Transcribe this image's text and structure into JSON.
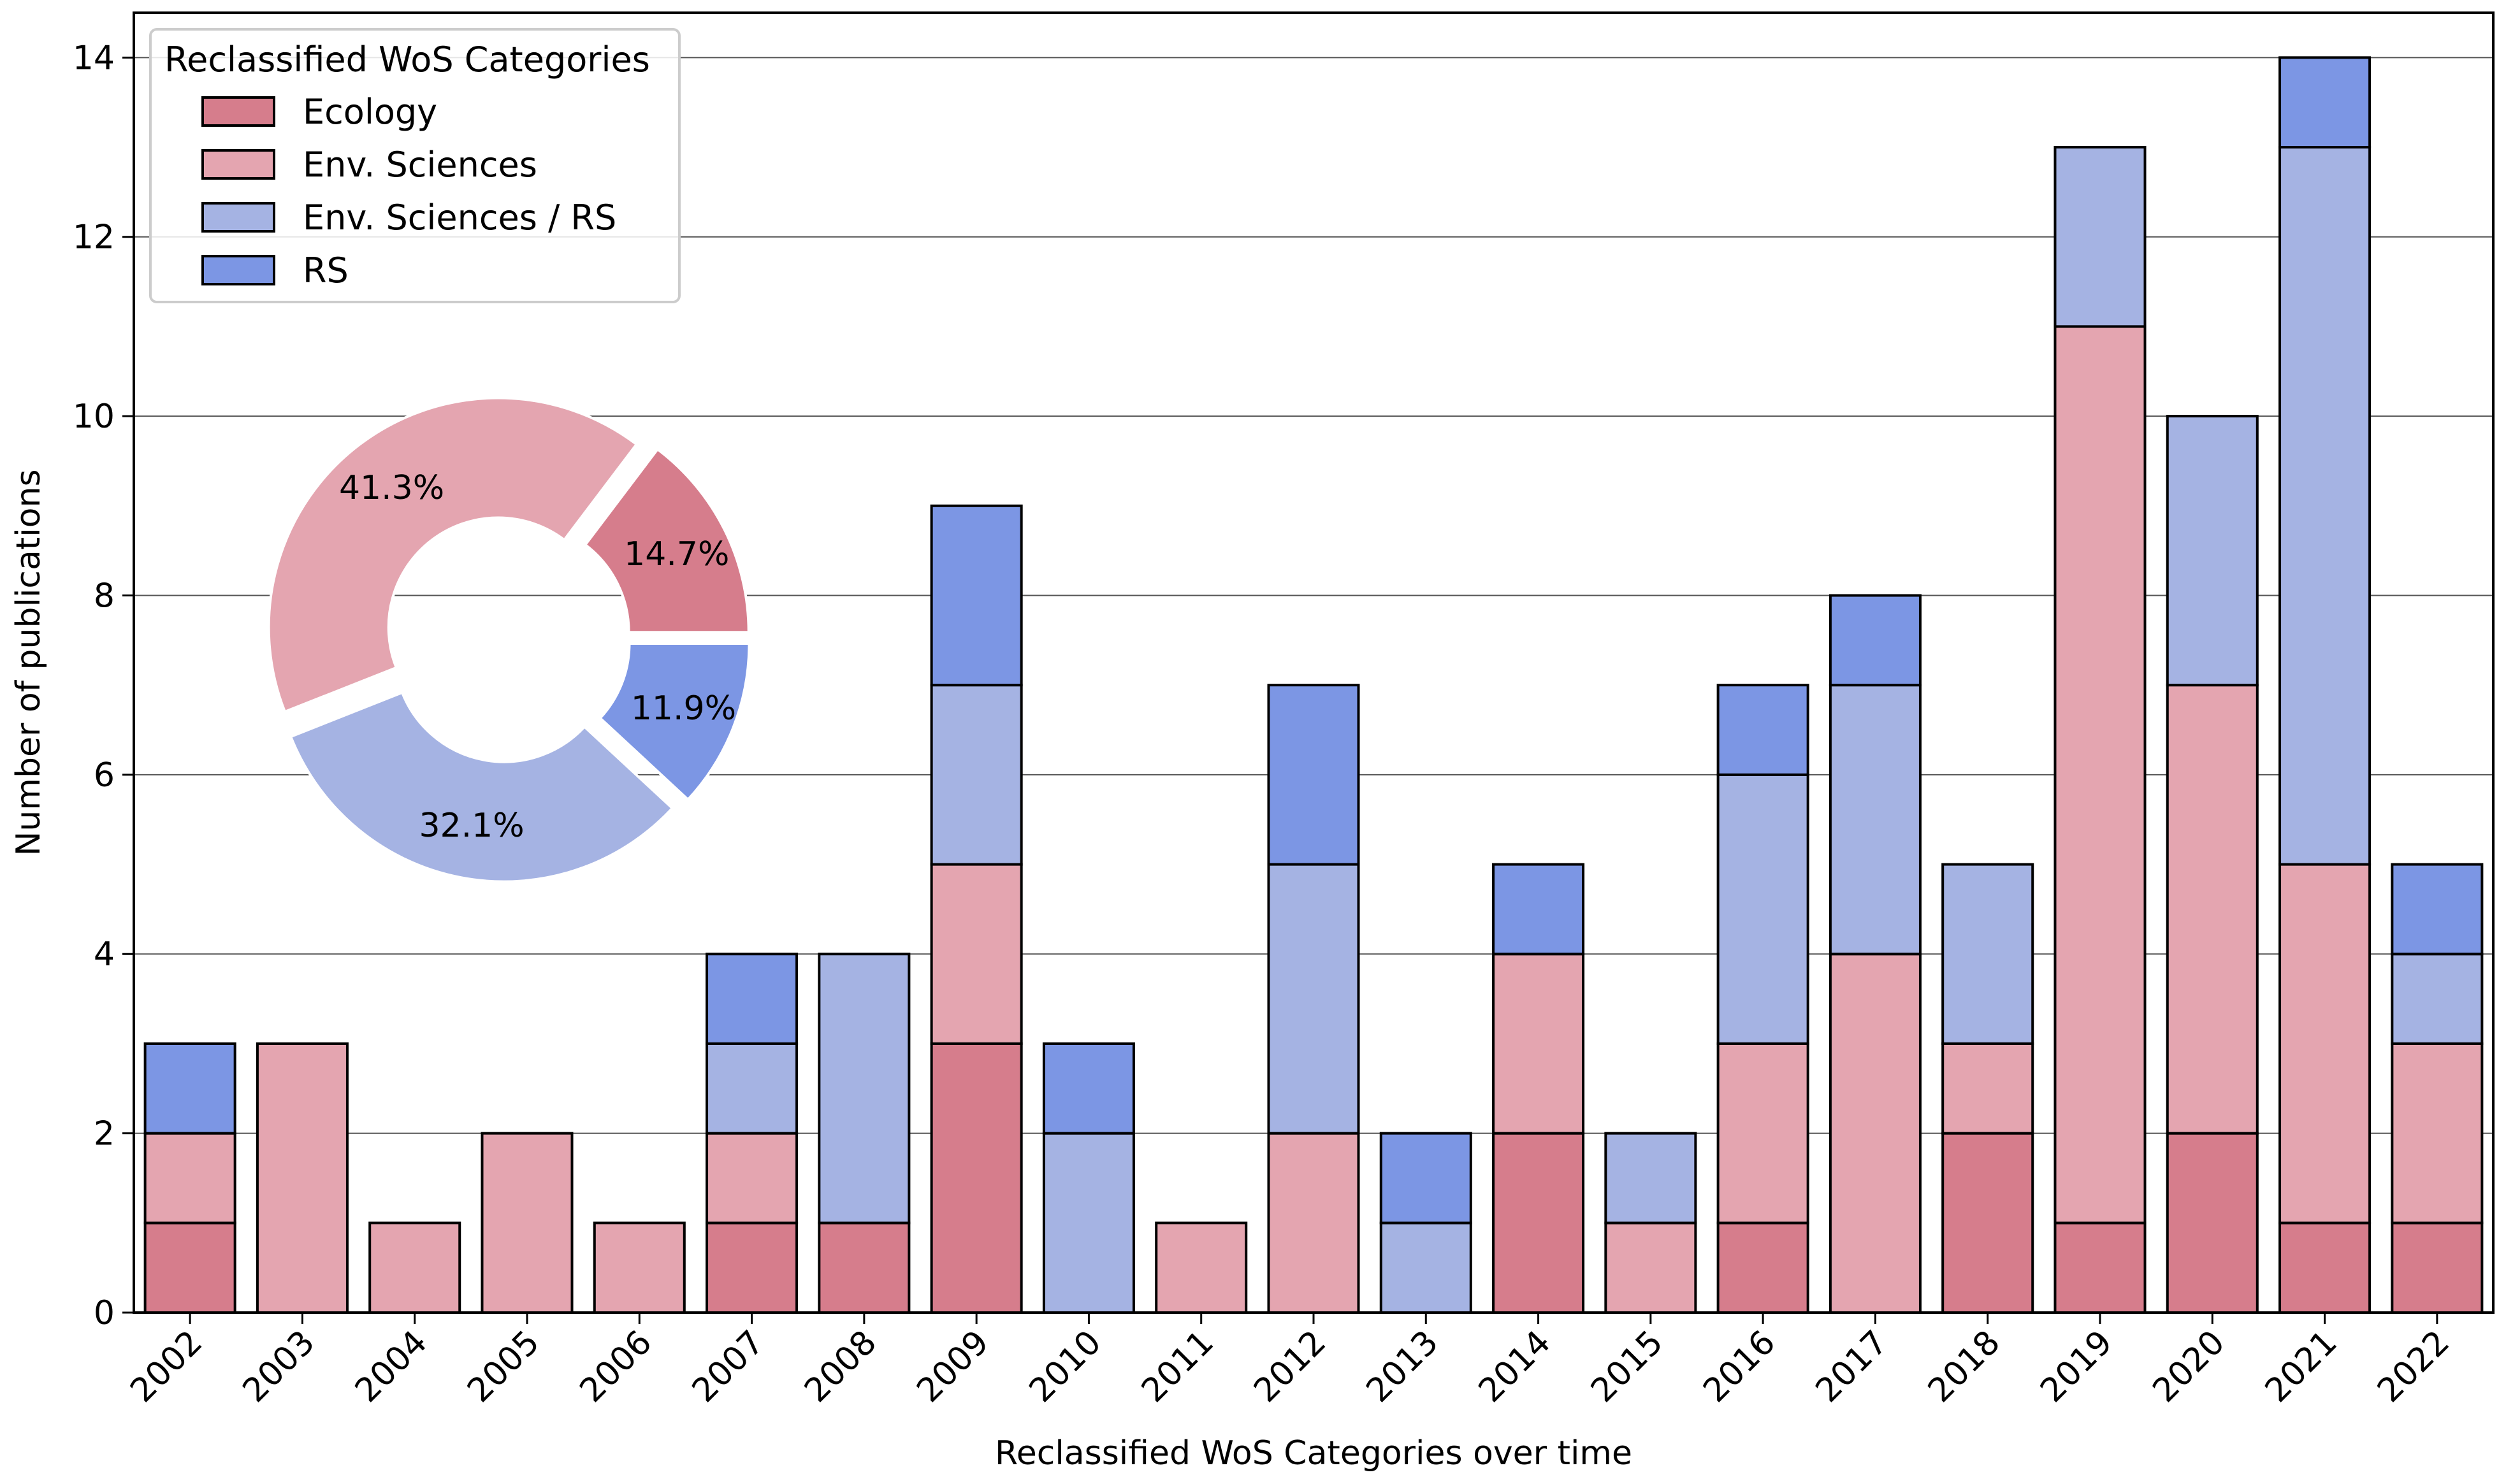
{
  "chart_data": {
    "type": "bar",
    "stacked": true,
    "title": "",
    "xlabel": "Reclassified WoS Categories over time",
    "ylabel": "Number of publications",
    "ylim": [
      0,
      14.5
    ],
    "yticks": [
      0,
      2,
      4,
      6,
      8,
      10,
      12,
      14
    ],
    "grid": "horizontal",
    "categories": [
      "2002",
      "2003",
      "2004",
      "2005",
      "2006",
      "2007",
      "2008",
      "2009",
      "2010",
      "2011",
      "2012",
      "2013",
      "2014",
      "2015",
      "2016",
      "2017",
      "2018",
      "2019",
      "2020",
      "2021",
      "2022"
    ],
    "series": [
      {
        "name": "Ecology",
        "color": "#d67d8c",
        "values": [
          1,
          0,
          0,
          0,
          0,
          1,
          1,
          3,
          0,
          0,
          0,
          0,
          2,
          0,
          1,
          0,
          2,
          1,
          2,
          1,
          1
        ]
      },
      {
        "name": "Env. Sciences",
        "color": "#e4a5b0",
        "values": [
          1,
          3,
          1,
          2,
          1,
          1,
          0,
          2,
          0,
          1,
          2,
          0,
          2,
          1,
          2,
          4,
          1,
          10,
          5,
          4,
          2
        ]
      },
      {
        "name": "Env. Sciences / RS",
        "color": "#a5b3e3",
        "values": [
          0,
          0,
          0,
          0,
          0,
          1,
          3,
          2,
          2,
          0,
          3,
          1,
          0,
          1,
          3,
          3,
          2,
          2,
          3,
          8,
          1
        ]
      },
      {
        "name": "RS",
        "color": "#7c96e4",
        "values": [
          1,
          0,
          0,
          0,
          0,
          1,
          0,
          2,
          1,
          0,
          2,
          1,
          1,
          0,
          1,
          1,
          0,
          0,
          0,
          1,
          1
        ]
      }
    ],
    "legend": {
      "title": "Reclassified WoS Categories",
      "position": "top-left"
    },
    "inset_pie": {
      "type": "donut",
      "position": "left",
      "slices": [
        {
          "name": "Ecology",
          "value": 14.7,
          "label": "14.7%",
          "color": "#d67d8c"
        },
        {
          "name": "Env. Sciences",
          "value": 41.3,
          "label": "41.3%",
          "color": "#e4a5b0"
        },
        {
          "name": "Env. Sciences / RS",
          "value": 32.1,
          "label": "32.1%",
          "color": "#a5b3e3"
        },
        {
          "name": "RS",
          "value": 11.9,
          "label": "11.9%",
          "color": "#7c96e4"
        }
      ]
    }
  }
}
